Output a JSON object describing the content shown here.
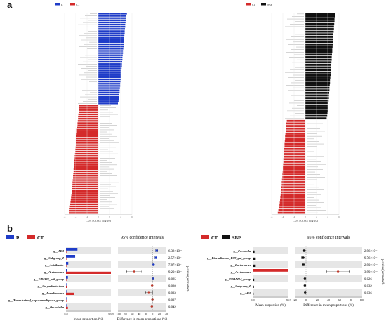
{
  "panel_labels": {
    "a": "a",
    "b": "b"
  },
  "colors": {
    "blue": "#1f3cc8",
    "red": "#d42a2a",
    "black": "#111111",
    "stripe": "#e6e6e6",
    "point": "#c0392b"
  },
  "chart_data": [
    {
      "id": "lefse_R_vs_CT",
      "type": "bar",
      "orientation": "horizontal",
      "title": "",
      "xlabel": "LDA SCORE (log 10)",
      "legend": [
        "R",
        "CT"
      ],
      "legend_position": "top-left",
      "series": [
        {
          "name": "R",
          "values": [
            5.1,
            5.0,
            4.9,
            4.9,
            4.85,
            4.8,
            4.8,
            4.75,
            4.7,
            4.7,
            4.65,
            4.6,
            4.6,
            4.55,
            4.5,
            4.5,
            4.45,
            4.4,
            4.4,
            4.35,
            4.3,
            4.3,
            4.25,
            4.2,
            4.2,
            4.15,
            4.1,
            4.1,
            4.05,
            4.0,
            4.0,
            3.95,
            3.9,
            3.9,
            3.85,
            3.8,
            3.8,
            3.75,
            3.7,
            3.7,
            3.6,
            3.5
          ]
        },
        {
          "name": "CT",
          "values": [
            3.4,
            3.45,
            3.5,
            3.5,
            3.55,
            3.6,
            3.6,
            3.65,
            3.7,
            3.7,
            3.75,
            3.8,
            3.8,
            3.85,
            3.9,
            3.9,
            3.95,
            4.0,
            4.0,
            4.05,
            4.1,
            4.1,
            4.15,
            4.2,
            4.2,
            4.25,
            4.3,
            4.3,
            4.35,
            4.4,
            4.4,
            4.45,
            4.5,
            4.5,
            4.55,
            4.6,
            4.6,
            4.65,
            4.7,
            4.7,
            4.75,
            4.8,
            4.85,
            4.9,
            4.95,
            5.0,
            5.05,
            5.1,
            5.15,
            5.2
          ]
        }
      ],
      "xlim": [
        -6,
        6
      ]
    },
    {
      "id": "lefse_CT_vs_SBP",
      "type": "bar",
      "orientation": "horizontal",
      "title": "",
      "xlabel": "LDA SCORE (log 10)",
      "legend": [
        "CT",
        "SBP"
      ],
      "legend_position": "top-left",
      "series": [
        {
          "name": "SBP",
          "values": [
            5.3,
            5.25,
            5.2,
            5.2,
            5.15,
            5.1,
            5.1,
            5.05,
            5.0,
            5.0,
            4.95,
            4.9,
            4.9,
            4.85,
            4.8,
            4.8,
            4.75,
            4.7,
            4.7,
            4.65,
            4.6,
            4.6,
            4.55,
            4.5,
            4.5,
            4.45,
            4.4,
            4.4,
            4.35,
            4.3,
            4.3,
            4.25,
            4.2,
            4.2,
            4.15,
            4.1,
            4.1,
            4.05,
            4.0,
            3.95,
            3.9,
            3.8
          ]
        },
        {
          "name": "CT",
          "values": [
            3.3,
            3.4,
            3.45,
            3.5,
            3.5,
            3.55,
            3.6,
            3.6,
            3.65,
            3.7,
            3.7,
            3.75,
            3.8,
            3.8,
            3.85,
            3.9,
            3.9,
            3.95,
            4.0,
            4.0,
            4.05,
            4.1,
            4.1,
            4.15,
            4.2,
            4.2,
            4.25,
            4.3,
            4.35,
            4.4,
            4.45,
            4.5,
            4.55,
            4.6,
            4.7,
            4.8,
            4.9
          ]
        }
      ],
      "xlim": [
        -6,
        6
      ]
    },
    {
      "id": "stamp_R_vs_CT",
      "type": "bar",
      "orientation": "horizontal",
      "legend": [
        "R",
        "CT"
      ],
      "ci_title": "95% confidence intervals",
      "xlabel_left": "Mean proportion (%)",
      "xlabel_right": "Difference in mean proportions (%)",
      "ylabel_right": "p-value (corrected)",
      "left_ticks": [
        "0.0",
        "58.9"
      ],
      "left_xlim": [
        0,
        58.9
      ],
      "right_ticks": [
        "-100",
        "-80",
        "-60",
        "-40",
        "-20",
        "0",
        "20",
        "40"
      ],
      "right_xlim": [
        -100,
        40
      ],
      "categories": [
        "g__AD3",
        "g__Subgroup_2",
        "g__Acidibacter",
        "g__Acetomonas",
        "g__WD2101_soil_group",
        "g__Corynebacterium",
        "g__Pseudomonas",
        "g__[Eubacterium]_coprostanoligenes_group",
        "g__Burneistlia"
      ],
      "series": [
        {
          "name": "R",
          "values": [
            15.0,
            12.0,
            3.0,
            1.0,
            2.5,
            0.5,
            0.5,
            0.0,
            0.0
          ]
        },
        {
          "name": "CT",
          "values": [
            0.4,
            0.3,
            0.2,
            58.9,
            0.2,
            1.5,
            10.5,
            0.3,
            2.5
          ]
        }
      ],
      "diff": [
        12.0,
        10.0,
        3.0,
        -53.0,
        1.8,
        -1.2,
        -10.0,
        -0.3,
        -2.0
      ],
      "ci_low": [
        9.0,
        7.0,
        1.5,
        -75.0,
        0.8,
        -2.2,
        -20.0,
        -0.8,
        -3.0
      ],
      "ci_high": [
        15.0,
        13.0,
        4.5,
        -31.0,
        2.8,
        -0.2,
        0.0,
        0.2,
        -1.0
      ],
      "pvalues": [
        "6.32×10⁻⁵",
        "2.57×10⁻⁴",
        "7.87×10⁻⁴",
        "9.20×10⁻³",
        "0.025",
        "0.028",
        "0.033",
        "0.037",
        "0.042"
      ]
    },
    {
      "id": "stamp_CT_vs_SBP",
      "type": "bar",
      "orientation": "horizontal",
      "legend": [
        "CT",
        "SBP"
      ],
      "ci_title": "95% confidence intervals",
      "xlabel_left": "Mean proportion (%)",
      "xlabel_right": "Difference in mean proportions (%)",
      "ylabel_right": "p-value (corrected)",
      "left_ticks": [
        "0.0",
        "58.9"
      ],
      "left_xlim": [
        0,
        58.9
      ],
      "right_ticks": [
        "-20",
        "0",
        "20",
        "40",
        "60",
        "80",
        "100"
      ],
      "right_xlim": [
        -20,
        100
      ],
      "categories": [
        "g__Prevotella",
        "g__Rikenellaceae_RC9_gut_group",
        "g__Lactococcus",
        "g__Acetomonas",
        "g__NK4A214_group",
        "g__Subgroup_2",
        "g__AD3"
      ],
      "series": [
        {
          "name": "CT",
          "values": [
            0.2,
            0.3,
            0.3,
            58.9,
            0.3,
            0.2,
            0.2
          ]
        },
        {
          "name": "SBP",
          "values": [
            3.0,
            5.0,
            5.0,
            0.5,
            2.5,
            2.0,
            1.5
          ]
        }
      ],
      "diff": [
        -3.0,
        -5.0,
        -5.0,
        57.0,
        -2.0,
        -2.0,
        -1.5
      ],
      "ci_low": [
        -4.5,
        -8.0,
        -7.0,
        37.0,
        -3.0,
        -3.5,
        -2.5
      ],
      "ci_high": [
        -1.5,
        -2.0,
        -3.0,
        77.0,
        -1.0,
        -0.5,
        -0.5
      ],
      "pvalues": [
        "2.96×10⁻⁴",
        "9.76×10⁻⁴",
        "2.90×10⁻³",
        "3.99×10⁻³",
        "0.026",
        "0.032",
        "0.036"
      ]
    }
  ]
}
